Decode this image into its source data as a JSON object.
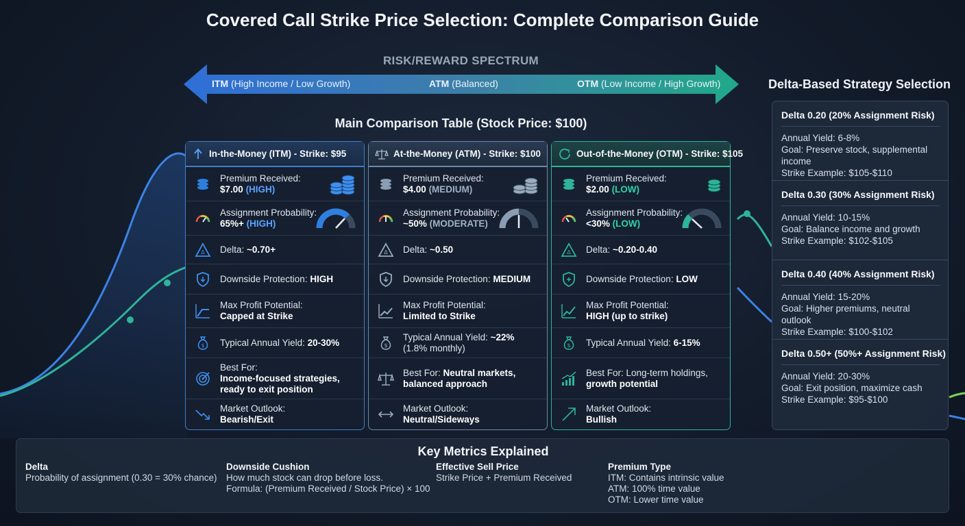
{
  "title": "Covered Call Strike Price Selection: Complete Comparison Guide",
  "spectrum": {
    "title": "RISK/REWARD SPECTRUM",
    "itm_abbr": "ITM",
    "itm_desc": " (High Income / Low Growth)",
    "atm_abbr": "ATM",
    "atm_desc": " (Balanced)",
    "otm_abbr": "OTM",
    "otm_desc": " (Low Income / High Growth)"
  },
  "table_title": "Main Comparison Table (Stock Price: $100)",
  "columns": {
    "itm": {
      "header": "In-the-Money (ITM) - Strike: $95",
      "premium_label": "Premium Received:",
      "premium_value": "$7.00",
      "premium_level": "(HIGH)",
      "assign_label": "Assignment Probability:",
      "assign_value": "65%+",
      "assign_level": "(HIGH)",
      "delta_label": "Delta: ",
      "delta_value": "~0.70+",
      "protection_label": "Downside Protection: ",
      "protection_value": "HIGH",
      "maxprofit_label": "Max Profit Potential:",
      "maxprofit_value": "Capped at Strike",
      "yield_label": "Typical Annual Yield: ",
      "yield_value": "20-30%",
      "yield_note": "",
      "bestfor_label": "Best For:",
      "bestfor_value": "Income-focused strategies, ready to exit position",
      "outlook_label": "Market Outlook:",
      "outlook_value": "Bearish/Exit"
    },
    "atm": {
      "header": "At-the-Money (ATM) - Strike: $100",
      "premium_label": "Premium Received:",
      "premium_value": "$4.00",
      "premium_level": "(MEDIUM)",
      "assign_label": "Assignment Probability:",
      "assign_value": "~50%",
      "assign_level": "(MODERATE)",
      "delta_label": "Delta: ",
      "delta_value": "~0.50",
      "protection_label": "Downside Protection: ",
      "protection_value": "MEDIUM",
      "maxprofit_label": "Max Profit Potential:",
      "maxprofit_value": "Limited to Strike",
      "yield_label": "Typical Annual Yield: ",
      "yield_value": "~22%",
      "yield_note": "(1.8% monthly)",
      "bestfor_label": "Best For: ",
      "bestfor_value": "Neutral markets, balanced approach",
      "outlook_label": "Market Outlook:",
      "outlook_value": "Neutral/Sideways"
    },
    "otm": {
      "header": "Out-of-the-Money (OTM) - Strike: $105",
      "premium_label": "Premium Received:",
      "premium_value": "$2.00",
      "premium_level": "(LOW)",
      "assign_label": "Assignment Probability:",
      "assign_value": "<30%",
      "assign_level": "(LOW)",
      "delta_label": "Delta: ",
      "delta_value": "~0.20-0.40",
      "protection_label": "Downside Protection: ",
      "protection_value": "LOW",
      "maxprofit_label": "Max Profit Potential:",
      "maxprofit_value": "HIGH (up to strike)",
      "yield_label": "Typical Annual Yield: ",
      "yield_value": "6-15%",
      "yield_note": "",
      "bestfor_label": "Best For: Long-term holdings,",
      "bestfor_value": "growth potential",
      "outlook_label": "Market Outlook:",
      "outlook_value": "Bullish"
    }
  },
  "delta_strategy": {
    "title": "Delta-Based Strategy Selection",
    "items": [
      {
        "head": "Delta 0.20 (20% Assignment Risk)",
        "yield": "Annual Yield: 6-8%",
        "goal": "Goal: Preserve stock, supplemental income",
        "strike": "Strike Example: $105-$110"
      },
      {
        "head": "Delta 0.30 (30% Assignment Risk)",
        "yield": "Annual Yield: 10-15%",
        "goal": "Goal: Balance income and growth",
        "strike": "Strike Example: $102-$105"
      },
      {
        "head": "Delta 0.40 (40% Assignment Risk)",
        "yield": "Annual Yield: 15-20%",
        "goal": "Goal: Higher premiums, neutral outlook",
        "strike": "Strike Example: $100-$102"
      },
      {
        "head": "Delta 0.50+ (50%+ Assignment Risk)",
        "yield": "Annual Yield: 20-30%",
        "goal": "Goal: Exit position, maximize cash",
        "strike": "Strike Example: $95-$100"
      }
    ]
  },
  "metrics": {
    "title": "Key Metrics Explained",
    "delta_head": "Delta",
    "delta_desc": "Probability of assignment (0.30 = 30% chance)",
    "cushion_head": "Downside Cushion",
    "cushion_desc": "How much stock can drop before loss.",
    "cushion_formula": "Formula: (Premium Received / Stock Price) × 100",
    "sell_head": "Effective Sell Price",
    "sell_desc": "Strike Price + Premium Received",
    "premium_head": "Premium Type",
    "premium_itm": "ITM: Contains intrinsic value",
    "premium_atm": "ATM: 100% time value",
    "premium_otm": "OTM: Lower time value"
  },
  "colors": {
    "itm_accent": "#3d80cc",
    "itm_highlight": "#5aa4ff",
    "atm_accent": "#6e8aa8",
    "otm_accent": "#2fb39a",
    "otm_highlight": "#2ed3a8",
    "background": "#131c2b"
  }
}
